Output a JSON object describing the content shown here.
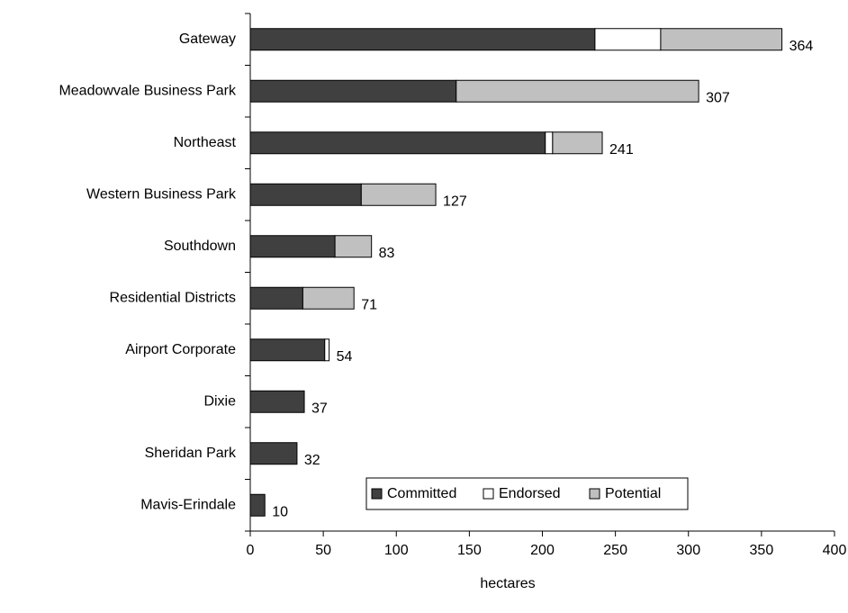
{
  "chart_data": {
    "type": "bar",
    "orientation": "horizontal",
    "stacked": true,
    "categories": [
      "Gateway",
      "Meadowvale Business Park",
      "Northeast",
      "Western Business Park",
      "Southdown",
      "Residential Districts",
      "Airport Corporate",
      "Dixie",
      "Sheridan Park",
      "Mavis-Erindale"
    ],
    "series": [
      {
        "name": "Committed",
        "color": "#404040",
        "values": [
          236,
          141,
          202,
          76,
          58,
          36,
          51,
          37,
          32,
          10
        ]
      },
      {
        "name": "Endorsed",
        "color": "#ffffff",
        "values": [
          45,
          0,
          5,
          0,
          0,
          0,
          3,
          0,
          0,
          0
        ]
      },
      {
        "name": "Potential",
        "color": "#c0c0c0",
        "values": [
          83,
          166,
          34,
          51,
          25,
          35,
          0,
          0,
          0,
          0
        ]
      }
    ],
    "totals": [
      "364",
      "307",
      "241",
      "127",
      "83",
      "71",
      "54",
      "37",
      "32",
      "10"
    ],
    "xlabel": "hectares",
    "ylabel": "",
    "xlim": [
      0,
      400
    ],
    "xticks": [
      "0",
      "50",
      "100",
      "150",
      "200",
      "250",
      "300",
      "350",
      "400"
    ],
    "grid": false,
    "legend_position": "bottom-right"
  }
}
